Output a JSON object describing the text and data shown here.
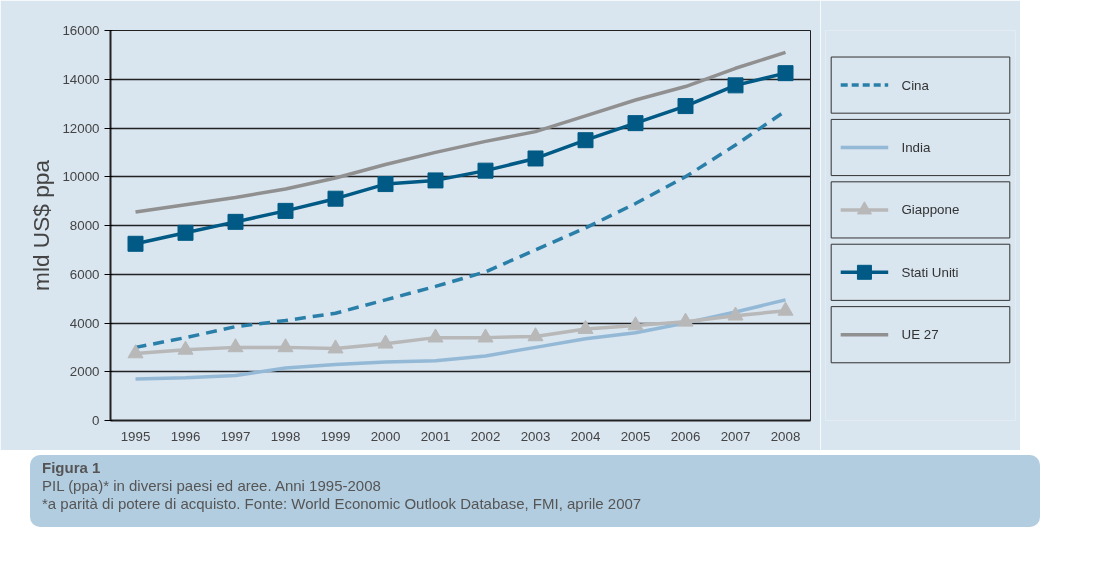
{
  "chart_data": {
    "type": "line",
    "title": "Figura 1",
    "subtitle": "PIL (ppa)* in diversi paesi ed aree. Anni 1995-2008",
    "annotations": [
      "*a parità di potere di acquisto. Fonte: World Economic Outlook Database, FMI, aprile 2007"
    ],
    "ylabel": "mld US$ ppa",
    "categories": [
      "1995",
      "1996",
      "1997",
      "1998",
      "1999",
      "2000",
      "2001",
      "2002",
      "2003",
      "2004",
      "2005",
      "2006",
      "2007",
      "2008"
    ],
    "ylim": [
      0,
      16000
    ],
    "yticks": [
      0,
      2000,
      4000,
      6000,
      8000,
      10000,
      12000,
      14000,
      16000
    ],
    "grid": "y",
    "legend": "right",
    "series": [
      {
        "name": "Cina",
        "color": "#2a7fa8",
        "line_style": "dashed",
        "marker": "none",
        "values": [
          3000,
          3400,
          3850,
          4100,
          4400,
          4950,
          5500,
          6100,
          7000,
          7900,
          8900,
          10000,
          11300,
          12700
        ]
      },
      {
        "name": "India",
        "color": "#94b9d6",
        "line_style": "solid",
        "marker": "none",
        "values": [
          1700,
          1750,
          1850,
          2150,
          2300,
          2400,
          2450,
          2650,
          3000,
          3350,
          3600,
          4000,
          4450,
          4950
        ]
      },
      {
        "name": "Giappone",
        "color": "#b8b8b8",
        "line_style": "solid",
        "marker": "triangle",
        "values": [
          2750,
          2900,
          3000,
          3000,
          2950,
          3150,
          3400,
          3400,
          3450,
          3750,
          3900,
          4050,
          4300,
          4500
        ]
      },
      {
        "name": "Stati Uniti",
        "color": "#005a85",
        "line_style": "solid",
        "marker": "square",
        "values": [
          7250,
          7700,
          8150,
          8600,
          9100,
          9700,
          9850,
          10250,
          10750,
          11500,
          12200,
          12900,
          13750,
          14250
        ]
      },
      {
        "name": "UE 27",
        "color": "#909090",
        "line_style": "solid",
        "marker": "none",
        "values": [
          8550,
          8850,
          9150,
          9500,
          9950,
          10500,
          11000,
          11450,
          11850,
          12500,
          13150,
          13700,
          14450,
          15100
        ]
      }
    ]
  }
}
